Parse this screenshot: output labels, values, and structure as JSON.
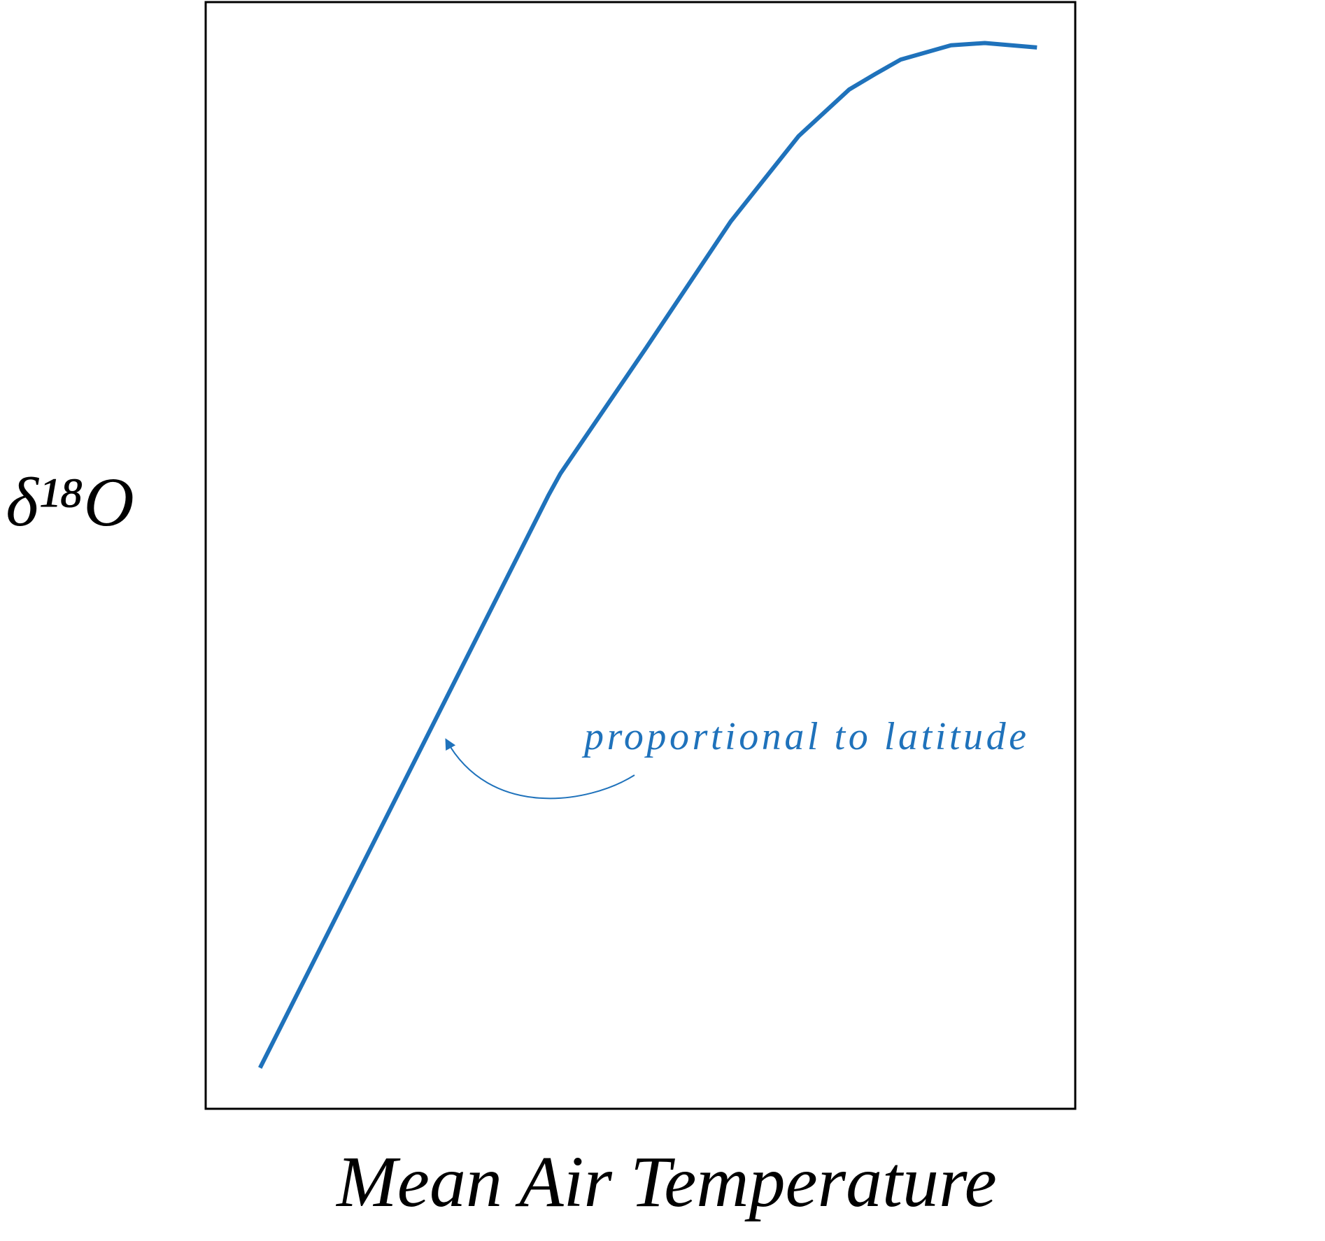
{
  "chart_data": {
    "type": "line",
    "x_label": "Mean Air Temperature",
    "y_label": "δ¹⁸O",
    "annotation": "proportional to latitude",
    "x": [
      6.25,
      39.4,
      40.8,
      50.6,
      60.4,
      68.2,
      74.0,
      77.0,
      79.9,
      85.7,
      89.6,
      95.6
    ],
    "values": [
      3.7,
      55.4,
      57.4,
      68.7,
      80.2,
      87.9,
      92.1,
      93.5,
      94.8,
      96.1,
      96.3,
      95.9
    ],
    "color": "#1f72bb",
    "xlim": [
      0,
      100
    ],
    "ylim": [
      0,
      100
    ],
    "grid": false
  }
}
